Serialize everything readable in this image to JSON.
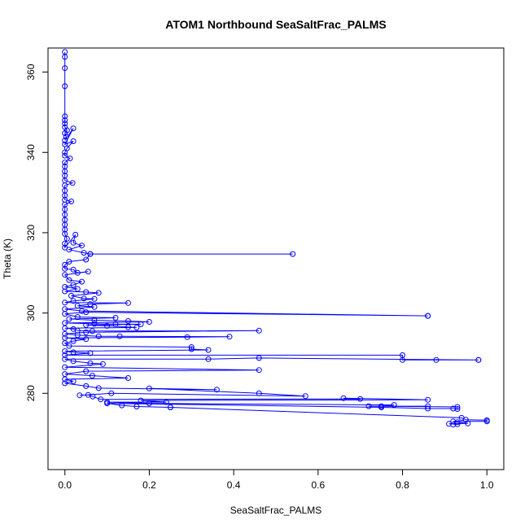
{
  "chart_data": {
    "type": "scatter",
    "title": "ATOM1 Northbound SeaSaltFrac_PALMS",
    "xlabel": "SeaSaltFrac_PALMS",
    "ylabel": "Theta (K)",
    "xlim": [
      -0.04,
      1.04
    ],
    "ylim": [
      261,
      366
    ],
    "xticks": [
      0.0,
      0.2,
      0.4,
      0.6,
      0.8,
      1.0
    ],
    "xtick_labels": [
      "0.0",
      "0.2",
      "0.4",
      "0.6",
      "0.8",
      "1.0"
    ],
    "yticks": [
      280,
      300,
      320,
      340,
      360
    ],
    "ytick_labels": [
      "280",
      "300",
      "320",
      "340",
      "360"
    ],
    "grid": false,
    "legend": "none",
    "color": "#0000ff",
    "series": [
      {
        "connected": true,
        "points": [
          [
            0.0,
            365.0
          ],
          [
            0.0,
            363.8
          ],
          [
            0.0,
            361.0
          ],
          [
            0.0,
            356.5
          ],
          [
            0.0,
            349.0
          ],
          [
            0.0,
            348.0
          ],
          [
            0.0,
            347.2
          ],
          [
            0.0,
            346.3
          ],
          [
            0.005,
            345.5
          ],
          [
            0.0,
            344.8
          ],
          [
            0.003,
            343.9
          ],
          [
            0.0,
            343.0
          ],
          [
            0.02,
            346.0
          ],
          [
            0.0,
            342.0
          ],
          [
            0.02,
            342.8
          ],
          [
            0.005,
            341.0
          ],
          [
            0.0,
            340.0
          ],
          [
            0.0,
            339.2
          ],
          [
            0.012,
            338.5
          ],
          [
            0.0,
            337.5
          ],
          [
            0.0,
            336.5
          ],
          [
            0.0,
            335.3
          ],
          [
            0.0,
            334.2
          ],
          [
            0.0,
            333.0
          ],
          [
            0.018,
            332.4
          ],
          [
            0.0,
            331.8
          ],
          [
            0.0,
            330.5
          ],
          [
            0.0,
            329.3
          ],
          [
            0.0,
            328.2
          ],
          [
            0.015,
            327.8
          ],
          [
            0.0,
            327.0
          ],
          [
            0.0,
            325.8
          ],
          [
            0.0,
            324.5
          ],
          [
            0.0,
            323.2
          ],
          [
            0.0,
            322.0
          ],
          [
            0.0,
            320.8
          ],
          [
            0.0,
            319.7
          ],
          [
            0.005,
            318.5
          ],
          [
            0.0,
            317.3
          ],
          [
            0.0,
            316.3
          ],
          [
            0.025,
            319.5
          ],
          [
            0.02,
            317.5
          ],
          [
            0.04,
            316.8
          ],
          [
            0.01,
            315.8
          ],
          [
            0.045,
            315.0
          ],
          [
            0.06,
            314.7
          ],
          [
            0.54,
            314.7
          ],
          [
            0.06,
            314.7
          ],
          [
            0.05,
            313.3
          ],
          [
            0.01,
            312.8
          ],
          [
            0.0,
            312.0
          ],
          [
            0.0,
            311.0
          ],
          [
            0.02,
            310.8
          ],
          [
            0.03,
            310.0
          ],
          [
            0.055,
            310.3
          ],
          [
            0.0,
            309.5
          ],
          [
            0.01,
            308.2
          ],
          [
            0.04,
            307.8
          ],
          [
            0.02,
            307.0
          ],
          [
            0.0,
            306.5
          ],
          [
            0.03,
            306.0
          ],
          [
            0.0,
            305.4
          ],
          [
            0.05,
            305.2
          ],
          [
            0.08,
            305.0
          ],
          [
            0.015,
            304.3
          ],
          [
            0.045,
            303.6
          ],
          [
            0.07,
            303.5
          ],
          [
            0.02,
            303.0
          ],
          [
            0.0,
            302.6
          ],
          [
            0.15,
            302.5
          ],
          [
            0.06,
            302.2
          ],
          [
            0.03,
            301.8
          ],
          [
            0.07,
            301.5
          ],
          [
            0.0,
            301.0
          ],
          [
            0.04,
            300.5
          ],
          [
            0.86,
            299.3
          ],
          [
            0.86,
            299.3
          ],
          [
            0.05,
            300.2
          ],
          [
            0.0,
            299.8
          ],
          [
            0.03,
            299.0
          ],
          [
            0.12,
            298.8
          ],
          [
            0.01,
            298.5
          ],
          [
            0.07,
            298.2
          ],
          [
            0.15,
            298.0
          ],
          [
            0.2,
            297.8
          ],
          [
            0.0,
            297.5
          ],
          [
            0.07,
            297.3
          ],
          [
            0.12,
            297.2
          ],
          [
            0.18,
            297.2
          ],
          [
            0.05,
            297.0
          ],
          [
            0.1,
            296.8
          ],
          [
            0.15,
            296.5
          ],
          [
            0.17,
            296.4
          ],
          [
            0.0,
            296.2
          ],
          [
            0.02,
            296.0
          ],
          [
            0.03,
            295.6
          ],
          [
            0.065,
            295.5
          ],
          [
            0.46,
            295.6
          ],
          [
            0.05,
            295.2
          ],
          [
            0.0,
            294.8
          ],
          [
            0.03,
            294.5
          ],
          [
            0.08,
            294.2
          ],
          [
            0.13,
            294.2
          ],
          [
            0.39,
            294.1
          ],
          [
            0.29,
            294.0
          ],
          [
            0.0,
            293.8
          ],
          [
            0.05,
            293.5
          ],
          [
            0.02,
            293.0
          ],
          [
            0.0,
            292.5
          ],
          [
            0.01,
            291.8
          ],
          [
            0.3,
            291.5
          ],
          [
            0.3,
            291.0
          ],
          [
            0.34,
            290.8
          ],
          [
            0.0,
            290.5
          ],
          [
            0.02,
            290.2
          ],
          [
            0.06,
            290.0
          ],
          [
            0.0,
            289.5
          ],
          [
            0.8,
            289.5
          ],
          [
            0.8,
            288.3
          ],
          [
            0.88,
            288.3
          ],
          [
            0.98,
            288.3
          ],
          [
            0.98,
            288.3
          ],
          [
            0.46,
            288.8
          ],
          [
            0.34,
            288.5
          ],
          [
            0.0,
            288.5
          ],
          [
            0.02,
            288.0
          ],
          [
            0.06,
            287.5
          ],
          [
            0.09,
            287.3
          ],
          [
            0.0,
            286.5
          ],
          [
            0.46,
            285.8
          ],
          [
            0.05,
            285.5
          ],
          [
            0.0,
            284.8
          ],
          [
            0.065,
            284.4
          ],
          [
            0.15,
            283.8
          ],
          [
            0.0,
            283.5
          ],
          [
            0.02,
            283.0
          ],
          [
            0.0,
            282.5
          ],
          [
            0.05,
            281.8
          ],
          [
            0.08,
            281.3
          ],
          [
            0.36,
            280.9
          ],
          [
            0.2,
            281.2
          ],
          [
            0.46,
            280.0
          ],
          [
            0.57,
            279.3
          ],
          [
            0.11,
            280.0
          ],
          [
            0.035,
            279.5
          ],
          [
            0.055,
            279.6
          ],
          [
            0.066,
            279.2
          ],
          [
            0.085,
            278.5
          ],
          [
            0.7,
            278.6
          ],
          [
            0.66,
            278.8
          ],
          [
            0.86,
            278.4
          ],
          [
            0.18,
            278.2
          ],
          [
            0.24,
            277.8
          ],
          [
            0.1,
            277.8
          ],
          [
            0.2,
            277.5
          ],
          [
            0.78,
            277.1
          ],
          [
            0.75,
            276.8
          ],
          [
            0.86,
            276.8
          ],
          [
            0.72,
            276.8
          ],
          [
            0.93,
            276.6
          ],
          [
            0.93,
            276.1
          ],
          [
            0.92,
            276.2
          ],
          [
            0.86,
            276.2
          ],
          [
            0.75,
            276.5
          ],
          [
            0.1,
            277.5
          ],
          [
            0.135,
            277.0
          ],
          [
            0.17,
            276.7
          ],
          [
            0.25,
            276.5
          ],
          [
            0.25,
            276.5
          ],
          [
            0.94,
            273.9
          ],
          [
            0.95,
            273.4
          ],
          [
            1.0,
            273.3
          ],
          [
            1.0,
            273.0
          ],
          [
            0.92,
            273.0
          ],
          [
            0.93,
            272.8
          ],
          [
            0.955,
            272.5
          ],
          [
            0.91,
            272.4
          ],
          [
            0.93,
            272.3
          ],
          [
            0.92,
            272.2
          ]
        ]
      }
    ]
  }
}
